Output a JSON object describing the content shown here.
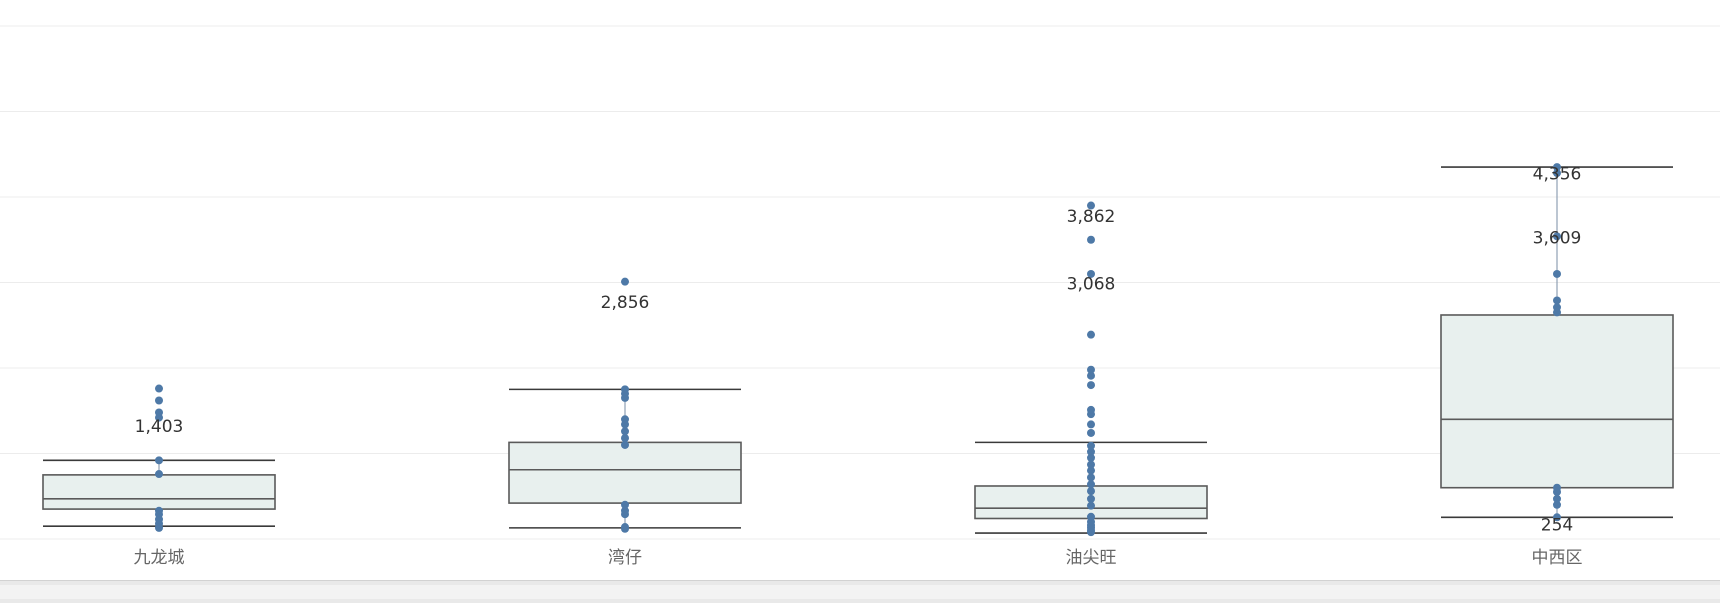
{
  "chart_data": {
    "type": "boxplot",
    "title": "",
    "xlabel": "",
    "ylabel": "",
    "ylim": [
      0,
      6000
    ],
    "grid": true,
    "categories": [
      "九龙城",
      "湾仔",
      "油尖旺",
      "中西区"
    ],
    "boxes": [
      {
        "category": "九龙城",
        "whisker_low": 150,
        "q1": 350,
        "median": 470,
        "q3": 750,
        "whisker_high": 920,
        "points": [
          130,
          180,
          230,
          290,
          330,
          760,
          920,
          1420,
          1480,
          1620,
          1760
        ],
        "value_labels": [
          {
            "value": 1403,
            "text": "1,403"
          }
        ]
      },
      {
        "category": "湾仔",
        "whisker_low": 130,
        "q1": 420,
        "median": 810,
        "q3": 1130,
        "whisker_high": 1750,
        "points": [
          120,
          140,
          290,
          330,
          400,
          1100,
          1180,
          1260,
          1340,
          1400,
          1650,
          1700,
          1750,
          3010
        ],
        "value_labels": [
          {
            "value": 2856,
            "text": "2,856"
          }
        ]
      },
      {
        "category": "油尖旺",
        "whisker_low": 70,
        "q1": 240,
        "median": 360,
        "q3": 620,
        "whisker_high": 1130,
        "points": [
          80,
          100,
          130,
          160,
          200,
          260,
          390,
          470,
          560,
          640,
          720,
          800,
          870,
          950,
          1020,
          1090,
          1240,
          1340,
          1460,
          1510,
          1800,
          1910,
          1980,
          2390,
          3100,
          3500,
          3900
        ],
        "value_labels": [
          {
            "value": 3862,
            "text": "3,862"
          },
          {
            "value": 3068,
            "text": "3,068"
          }
        ]
      },
      {
        "category": "中西区",
        "whisker_low": 254,
        "q1": 600,
        "median": 1400,
        "q3": 2620,
        "whisker_high": 4350,
        "points": [
          254,
          400,
          470,
          550,
          600,
          2650,
          2710,
          2790,
          3100,
          3540,
          4280,
          4350
        ],
        "value_labels": [
          {
            "value": 4356,
            "text": "4,356"
          },
          {
            "value": 3609,
            "text": "3,609"
          },
          {
            "value": 254,
            "text": "254"
          }
        ]
      }
    ]
  }
}
